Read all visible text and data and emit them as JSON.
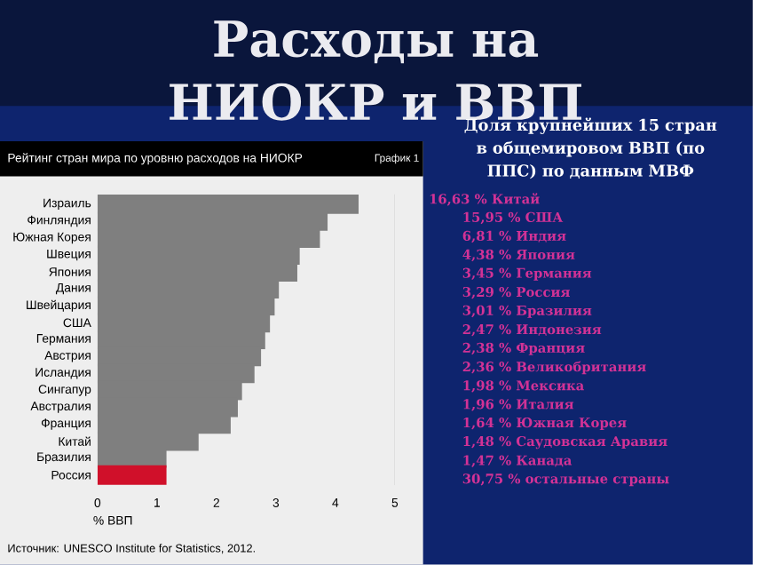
{
  "chart_data": {
    "type": "bar",
    "orientation": "horizontal",
    "title": "Расходы на НИОКР и ВВП",
    "subtitle": "Рейтинг стран мира по уровню расходов на НИОКР",
    "xlabel": "% ВВП",
    "categories": [
      "Израиль",
      "Финляндия",
      "Южная Корея",
      "Швеция",
      "Япония",
      "Дания",
      "Швейцария",
      "США",
      "Германия",
      "Австрия",
      "Исландия",
      "Сингапур",
      "Австралия",
      "Франция",
      "Китай",
      "Бразилия",
      "Россия"
    ],
    "values": [
      4.39,
      3.87,
      3.74,
      3.4,
      3.36,
      3.05,
      2.98,
      2.9,
      2.82,
      2.75,
      2.64,
      2.43,
      2.36,
      2.24,
      1.7,
      1.16,
      1.16
    ],
    "colors": [
      "#7f7f7f",
      "#7f7f7f",
      "#7f7f7f",
      "#7f7f7f",
      "#7f7f7f",
      "#7f7f7f",
      "#7f7f7f",
      "#7f7f7f",
      "#7f7f7f",
      "#7f7f7f",
      "#7f7f7f",
      "#7f7f7f",
      "#7f7f7f",
      "#7f7f7f",
      "#7f7f7f",
      "#7f7f7f",
      "#d0102a"
    ],
    "xlim": [
      0,
      5
    ],
    "xticks": [
      0,
      1,
      2,
      3,
      4,
      5
    ],
    "annotations": [
      "График 1",
      "Источник: UNESCO Institute for Statistics, 2012.",
      "Доля крупнейших 15 стран в общемировом ВВП (по ППС) по данным МВФ",
      "16,63 % Китай",
      "15,95 % США",
      "6,81 % Индия",
      "4,38 % Япония",
      "3,45 % Германия",
      "3,29 % Россия",
      "3,01 % Бразилия",
      "2,47 % Индонезия",
      "2,38 % Франция",
      "2,36 % Великобритания",
      "1,98 % Мексика",
      "1,96 % Италия",
      "1,64 % Южная Корея",
      "1,48 % Саудовская Аравия",
      "1,47 % Канада",
      "30,75 % остальные страны"
    ]
  }
}
